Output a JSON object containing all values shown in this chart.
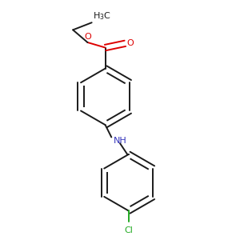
{
  "background_color": "#ffffff",
  "bond_color": "#1a1a1a",
  "oxygen_color": "#dd0000",
  "nitrogen_color": "#3333bb",
  "chlorine_color": "#22aa22",
  "line_width": 1.4,
  "dbo": 0.012,
  "fig_size": [
    3.0,
    3.0
  ],
  "dpi": 100,
  "xlim": [
    0.1,
    0.9
  ],
  "ylim": [
    0.02,
    0.98
  ]
}
